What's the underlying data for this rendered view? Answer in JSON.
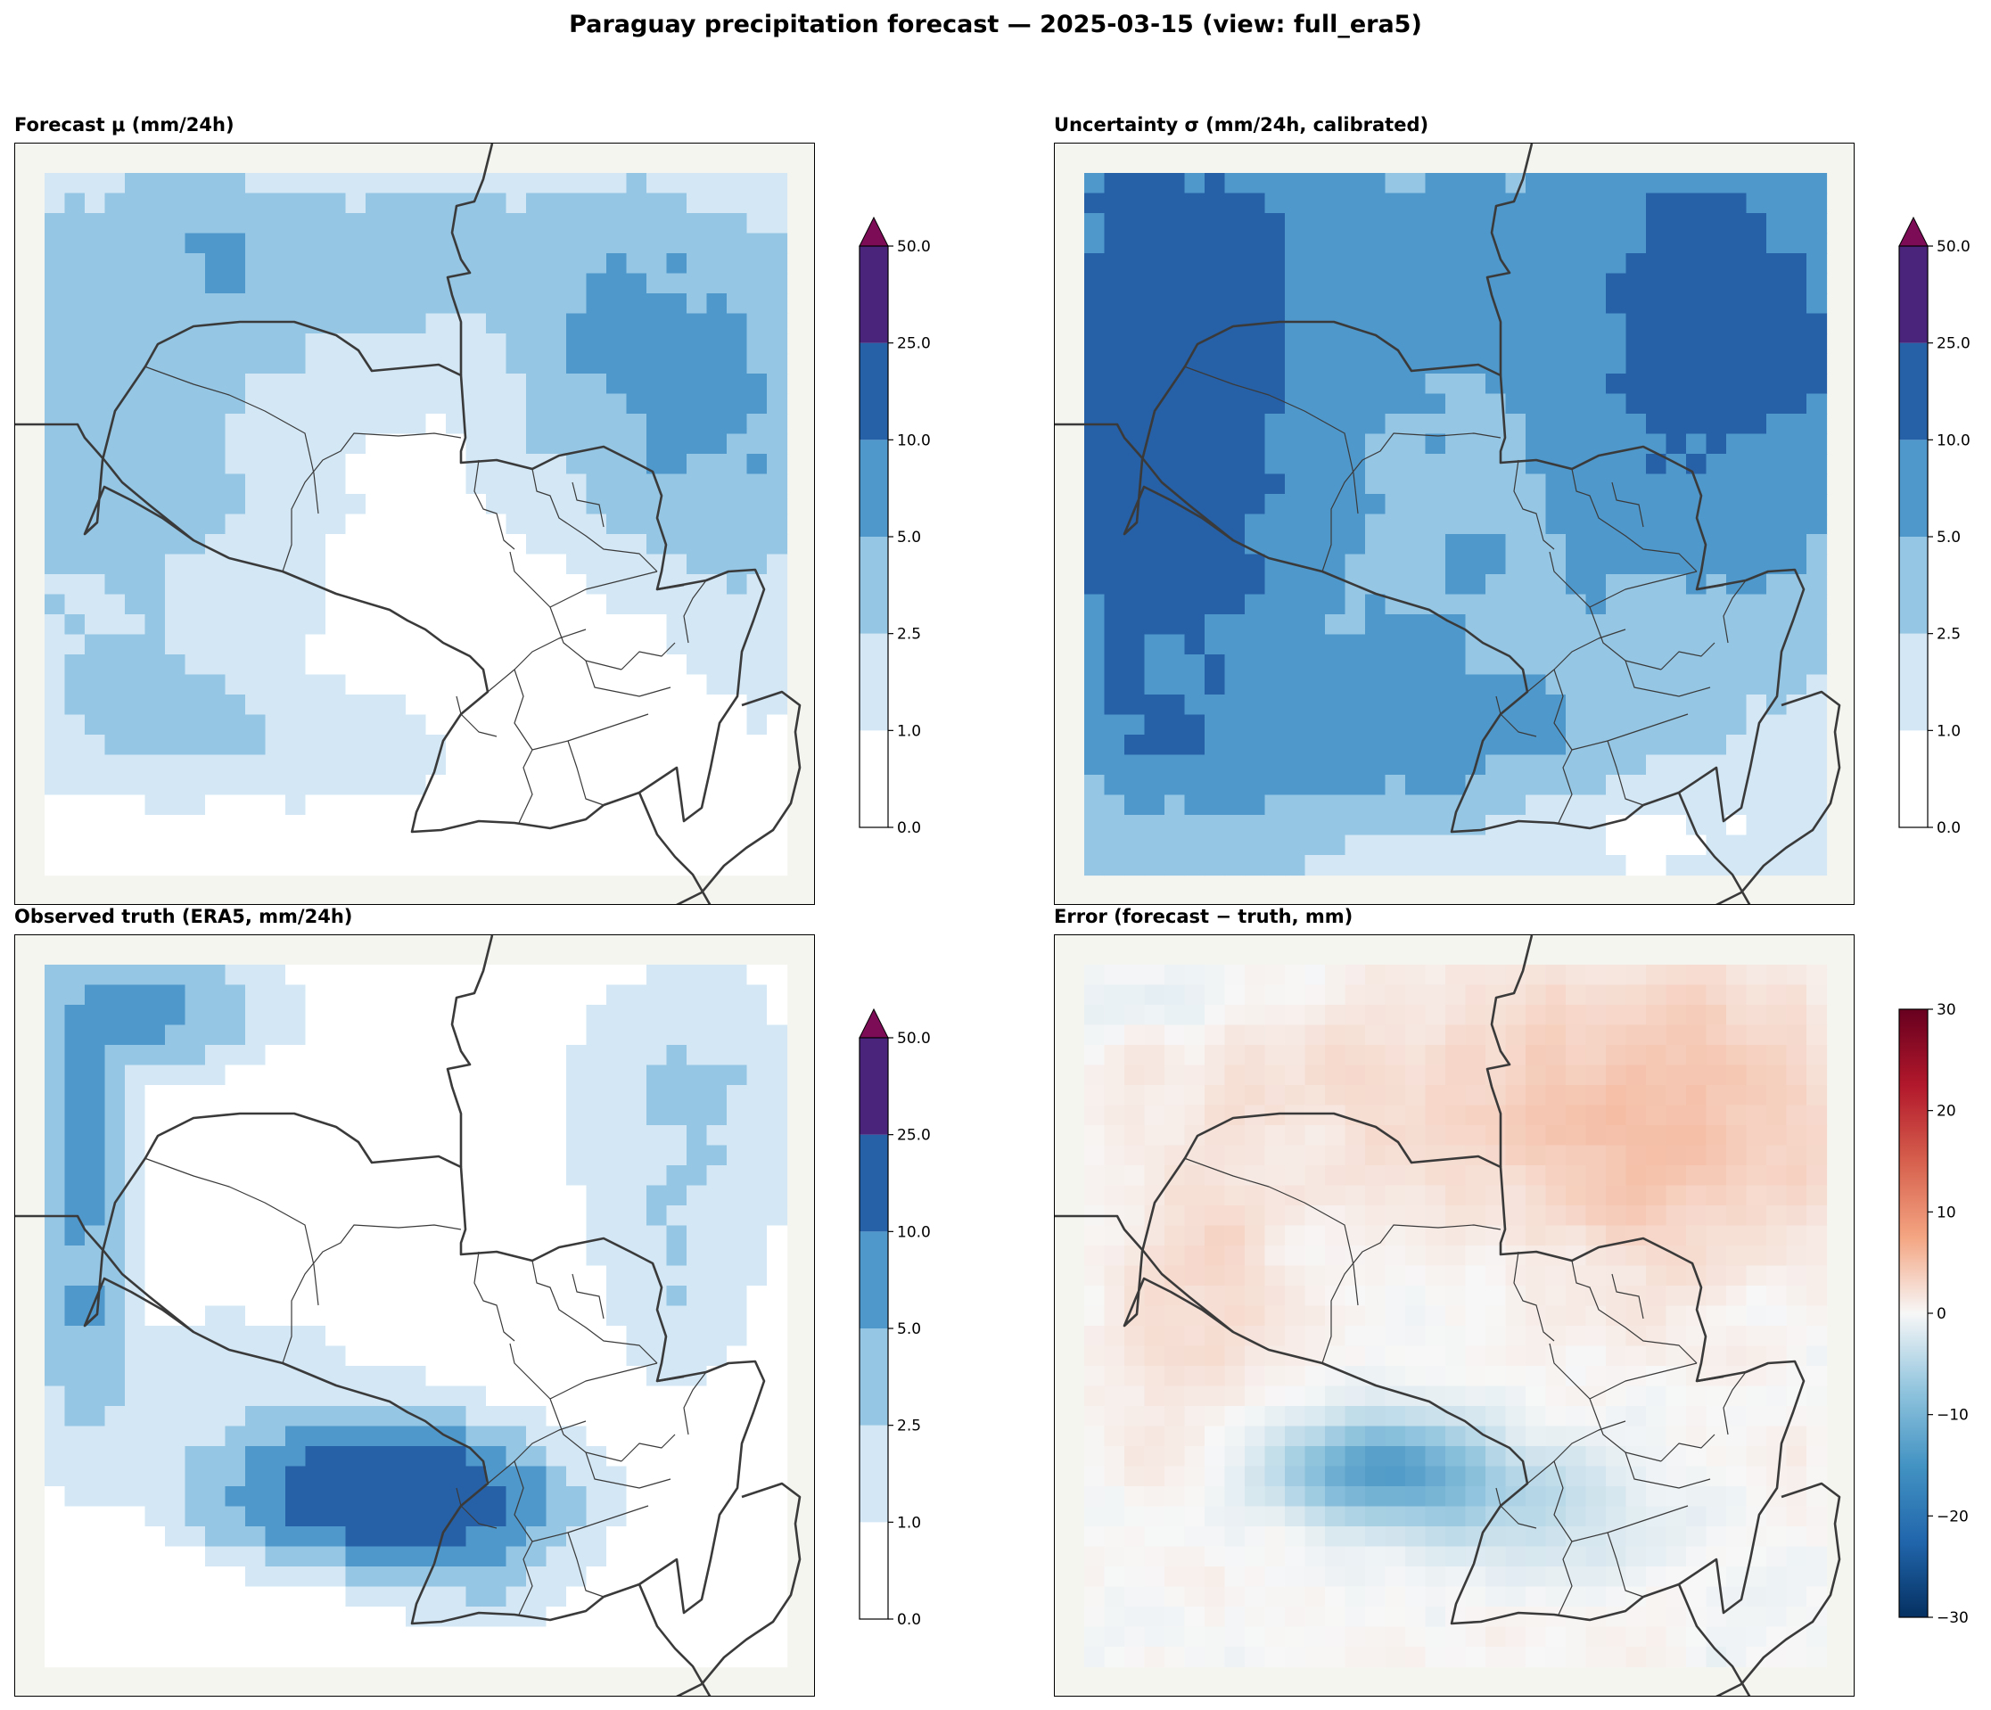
{
  "suptitle": "Paraguay precipitation forecast — 2025-03-15  (view: full_era5)",
  "panels": [
    {
      "id": "forecast",
      "title": "Forecast μ (mm/24h)"
    },
    {
      "id": "uncertainty",
      "title": "Uncertainty σ (mm/24h, calibrated)"
    },
    {
      "id": "truth",
      "title": "Observed truth (ERA5, mm/24h)"
    },
    {
      "id": "error",
      "title": "Error (forecast − truth, mm)"
    }
  ],
  "colors": {
    "precip_levels": [
      "#ffffff",
      "#d3e7f5",
      "#95c6e4",
      "#4f98cc",
      "#2660a7",
      "#4a237b",
      "#7d0c57"
    ],
    "error_scale": [
      "#053061",
      "#2166ac",
      "#4393c3",
      "#92c5de",
      "#f7f7f7",
      "#f4a582",
      "#d6604d",
      "#b2182b",
      "#67001f"
    ],
    "background": "#f5f5f0",
    "border": "#3a3a3a"
  },
  "chart_data": [
    {
      "type": "heatmap",
      "title": "Forecast μ (mm/24h)",
      "colorbar": {
        "bounds": [
          0.0,
          1.0,
          2.5,
          5.0,
          10.0,
          25.0,
          50.0
        ],
        "tick_labels": [
          "0.0",
          "1.0",
          "2.5",
          "5.0",
          "10.0",
          "25.0",
          "50.0"
        ],
        "extend": "max"
      },
      "grid_shape": [
        35,
        37
      ],
      "regions": [
        {
          "area": "north-west and west",
          "level_range": [
            2.5,
            5.0
          ]
        },
        {
          "area": "north-east",
          "level_range": [
            2.5,
            10.0
          ]
        },
        {
          "area": "centre and south",
          "level_range": [
            0.0,
            1.0
          ]
        }
      ]
    },
    {
      "type": "heatmap",
      "title": "Uncertainty σ (mm/24h, calibrated)",
      "colorbar": {
        "bounds": [
          0.0,
          1.0,
          2.5,
          5.0,
          10.0,
          25.0,
          50.0
        ],
        "tick_labels": [
          "0.0",
          "1.0",
          "2.5",
          "5.0",
          "10.0",
          "25.0",
          "50.0"
        ],
        "extend": "max"
      },
      "grid_shape": [
        35,
        37
      ],
      "regions": [
        {
          "area": "west and north-east",
          "level_range": [
            10.0,
            25.0
          ]
        },
        {
          "area": "centre",
          "level_range": [
            2.5,
            5.0
          ]
        },
        {
          "area": "south-east",
          "level_range": [
            0.0,
            2.5
          ]
        }
      ]
    },
    {
      "type": "heatmap",
      "title": "Observed truth (ERA5, mm/24h)",
      "colorbar": {
        "bounds": [
          0.0,
          1.0,
          2.5,
          5.0,
          10.0,
          25.0,
          50.0
        ],
        "tick_labels": [
          "0.0",
          "1.0",
          "2.5",
          "5.0",
          "10.0",
          "25.0",
          "50.0"
        ],
        "extend": "max"
      },
      "grid_shape": [
        35,
        37
      ],
      "regions": [
        {
          "area": "south-west cluster",
          "level_range": [
            10.0,
            25.0
          ]
        },
        {
          "area": "far west strip",
          "level_range": [
            5.0,
            10.0
          ]
        },
        {
          "area": "most of domain",
          "level_range": [
            0.0,
            1.0
          ]
        }
      ]
    },
    {
      "type": "heatmap",
      "title": "Error (forecast − truth, mm)",
      "colorbar": {
        "range": [
          -30,
          30
        ],
        "ticks": [
          -30,
          -20,
          -10,
          0,
          10,
          20,
          30
        ],
        "tick_labels": [
          "−30",
          "−20",
          "−10",
          "0",
          "10",
          "20",
          "30"
        ],
        "cmap": "RdBu_r"
      },
      "grid_shape": [
        35,
        37
      ],
      "regions": [
        {
          "area": "south-west",
          "value_range": [
            -15,
            -5
          ]
        },
        {
          "area": "north-east",
          "value_range": [
            2,
            8
          ]
        },
        {
          "area": "elsewhere",
          "value_range": [
            -2,
            2
          ]
        }
      ]
    }
  ]
}
